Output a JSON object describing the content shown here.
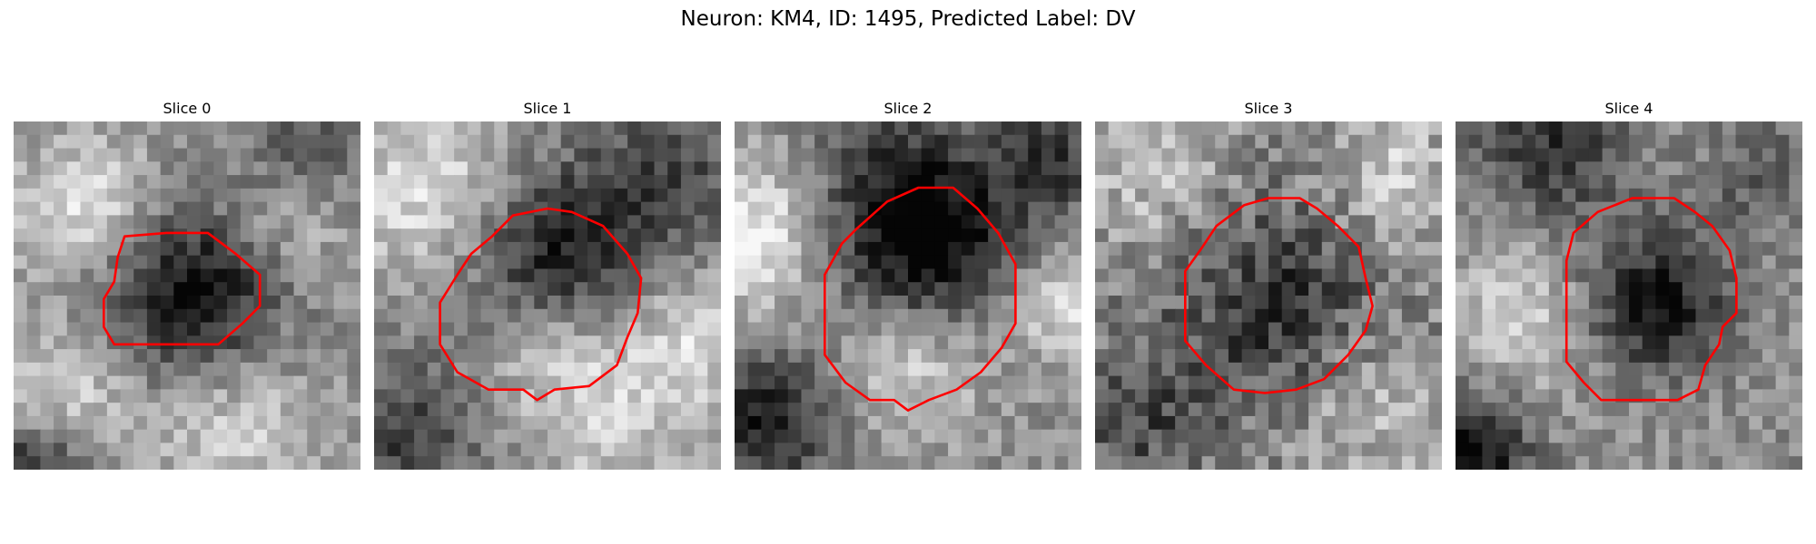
{
  "figure": {
    "title": "Neuron: KM4, ID: 1495, Predicted Label: DV"
  },
  "colors": {
    "contour": "#ff0000",
    "background": "#ffffff"
  },
  "panels": [
    {
      "title": "Slice 0",
      "contour_color": "red"
    },
    {
      "title": "Slice 1",
      "contour_color": "red"
    },
    {
      "title": "Slice 2",
      "contour_color": "red"
    },
    {
      "title": "Slice 3",
      "contour_color": "red"
    },
    {
      "title": "Slice 4",
      "contour_color": "red"
    }
  ]
}
